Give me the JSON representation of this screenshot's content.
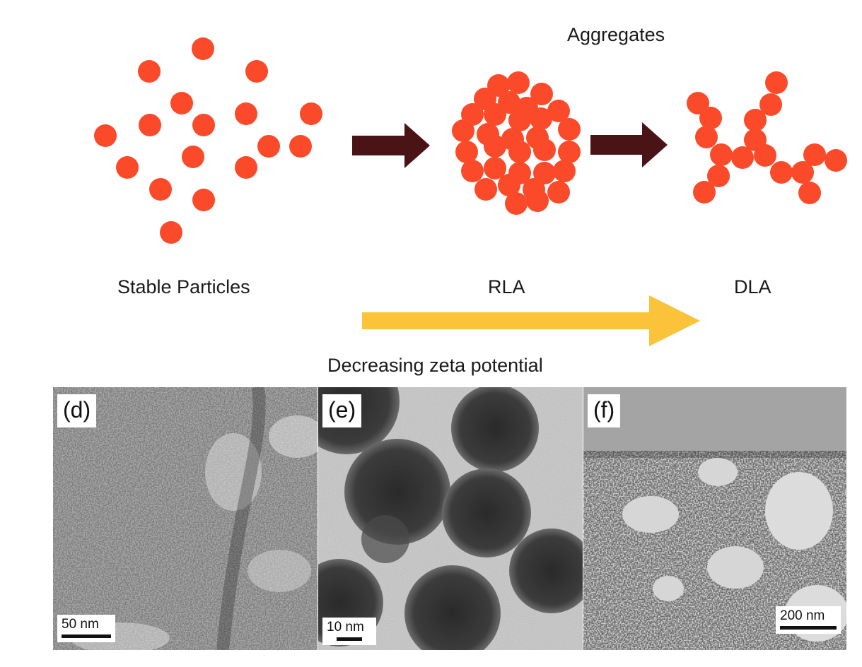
{
  "diagram": {
    "title": "Aggregates",
    "stages": [
      {
        "label": "Stable Particles"
      },
      {
        "label": "RLA"
      },
      {
        "label": "DLA"
      }
    ],
    "trend_label": "Decreasing zeta potential",
    "colors": {
      "particle": "#fb4a2a",
      "arrow_dark": "#4a1416",
      "arrow_trend": "#fbc33a"
    }
  },
  "micrographs": [
    {
      "label": "(d)",
      "scale_bar": "50 nm"
    },
    {
      "label": "(e)",
      "scale_bar": "10 nm"
    },
    {
      "label": "(f)",
      "scale_bar": "200 nm"
    }
  ]
}
